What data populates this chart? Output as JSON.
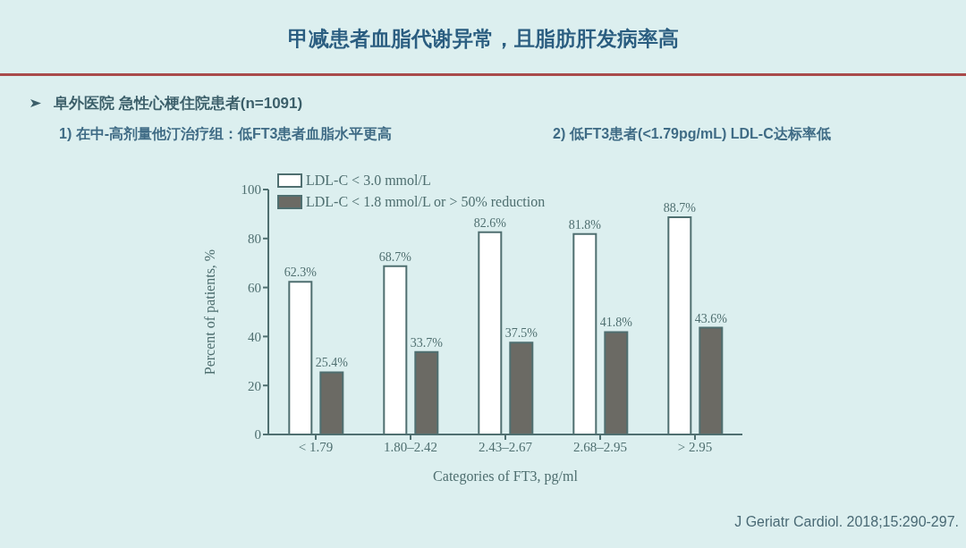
{
  "chart_data": {
    "type": "bar",
    "title": "甲减患者血脂代谢异常，且脂肪肝发病率高",
    "annotations": [
      "阜外医院  急性心梗住院患者(n=1091)",
      "1) 在中-高剂量他汀治疗组：低FT3患者血脂水平更高",
      "2) 低FT3患者(<1.79pg/mL) LDL-C达标率低",
      "J Geriatr Cardiol. 2018;15:290-297."
    ],
    "xlabel": "Categories of FT3, pg/ml",
    "ylabel": "Percent of patients, %",
    "categories": [
      "< 1.79",
      "1.80–2.42",
      "2.43–2.67",
      "2.68–2.95",
      "> 2.95"
    ],
    "series": [
      {
        "name": "LDL-C < 3.0 mmol/L",
        "color": "#ffffff",
        "values": [
          62.3,
          68.7,
          82.6,
          81.8,
          88.7
        ],
        "value_labels": [
          "62.3%",
          "68.7%",
          "82.6%",
          "81.8%",
          "88.7%"
        ]
      },
      {
        "name": "LDL-C < 1.8 mmol/L or > 50% reduction",
        "color": "#6b6a64",
        "values": [
          25.4,
          33.7,
          37.5,
          41.8,
          43.6
        ],
        "value_labels": [
          "25.4%",
          "33.7%",
          "37.5%",
          "41.8%",
          "43.6%"
        ]
      }
    ],
    "ylim": [
      0,
      100
    ],
    "yticks": [
      0,
      20,
      40,
      60,
      80,
      100
    ],
    "grid": false,
    "legend": "top left"
  }
}
